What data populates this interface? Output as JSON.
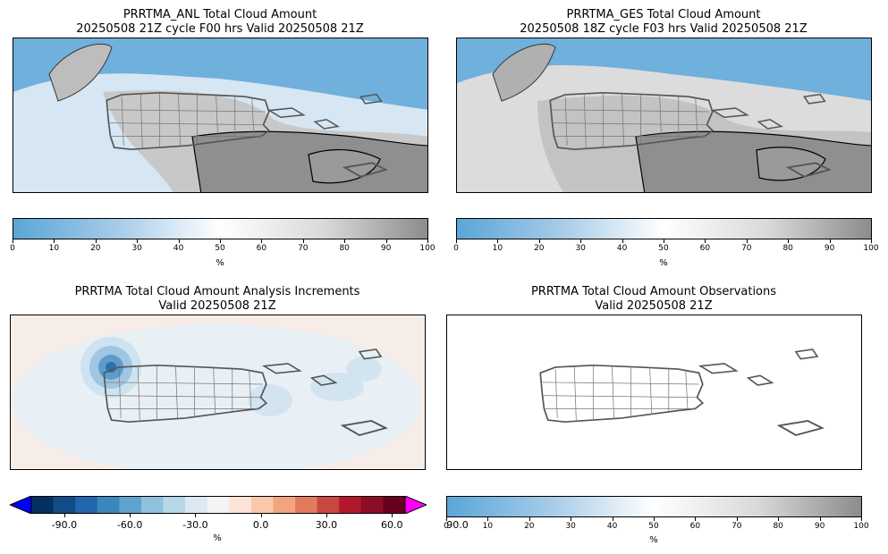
{
  "panels": {
    "anl": {
      "title_line1": "PRRTMA_ANL Total Cloud Amount",
      "title_line2": "20250508 21Z cycle F00 hrs Valid 20250508 21Z",
      "colorbar": {
        "ticks": [
          "0",
          "10",
          "20",
          "30",
          "40",
          "50",
          "60",
          "70",
          "80",
          "90",
          "100"
        ],
        "unit": "%"
      }
    },
    "ges": {
      "title_line1": "PRRTMA_GES Total Cloud Amount",
      "title_line2": "20250508 18Z cycle F03 hrs Valid 20250508 21Z",
      "colorbar": {
        "ticks": [
          "0",
          "10",
          "20",
          "30",
          "40",
          "50",
          "60",
          "70",
          "80",
          "90",
          "100"
        ],
        "unit": "%"
      }
    },
    "increments": {
      "title_line1": "PRRTMA Total Cloud Amount Analysis Increments",
      "title_line2": "Valid 20250508 21Z",
      "colorbar": {
        "ticks": [
          "-90.0",
          "-60.0",
          "-30.0",
          "0.0",
          "30.0",
          "60.0",
          "90.0"
        ],
        "unit": "%"
      }
    },
    "obs": {
      "title_line1": "PRRTMA Total Cloud Amount Observations",
      "title_line2": "Valid 20250508 21Z",
      "colorbar": {
        "ticks": [
          "0",
          "10",
          "20",
          "30",
          "40",
          "50",
          "60",
          "70",
          "80",
          "90",
          "100"
        ],
        "unit": "%"
      }
    }
  },
  "colors": {
    "cloud_low": "#5aa6d8",
    "cloud_mid": "#ffffff",
    "cloud_high": "#8c8c8c",
    "increment_min": "#053061",
    "increment_max": "#67001f",
    "increment_under": "#0000ff",
    "increment_over": "#ff00ff",
    "land_outline": "#555555"
  }
}
